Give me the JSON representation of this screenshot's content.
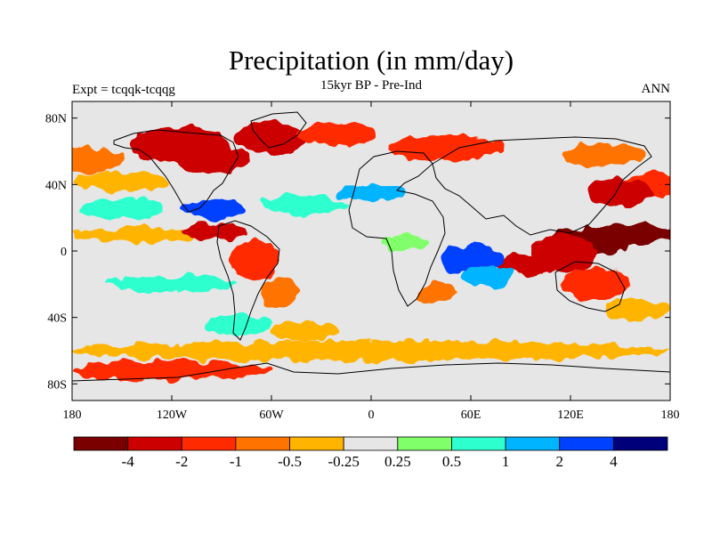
{
  "title": "Precipitation (in mm/day)",
  "subtitle": "15kyr BP - Pre-Ind",
  "left_label": "Expt = tcqqk-tcqqg",
  "right_label": "ANN",
  "colors": {
    "land_bg": "#e6e6e6",
    "coast": "#000000"
  },
  "chart_data": {
    "type": "heatmap",
    "title": "Precipitation (in mm/day)",
    "subtitle": "15kyr BP - Pre-Ind",
    "lon_range": [
      -180,
      180
    ],
    "lat_range": [
      -90,
      90
    ],
    "x_ticks": [
      {
        "value": -180,
        "label": "180"
      },
      {
        "value": -120,
        "label": "120W"
      },
      {
        "value": -60,
        "label": "60W"
      },
      {
        "value": 0,
        "label": "0"
      },
      {
        "value": 60,
        "label": "60E"
      },
      {
        "value": 120,
        "label": "120E"
      },
      {
        "value": 180,
        "label": "180"
      }
    ],
    "y_ticks": [
      {
        "value": 80,
        "label": "80N"
      },
      {
        "value": 40,
        "label": "40N"
      },
      {
        "value": 0,
        "label": "0"
      },
      {
        "value": -40,
        "label": "40S"
      },
      {
        "value": -80,
        "label": "80S"
      }
    ],
    "colorbar": {
      "colors": [
        "#7a0000",
        "#cc0000",
        "#ff2a00",
        "#ff7300",
        "#ffb400",
        "#e6e6e6",
        "#80ff6b",
        "#2effcf",
        "#00b4ff",
        "#0041ff",
        "#00007a"
      ],
      "labels": [
        "-4",
        "-2",
        "-1",
        "-0.5",
        "-0.25",
        "0.25",
        "0.5",
        "1",
        "2",
        "4"
      ]
    },
    "regions": [
      {
        "lon": -115,
        "lat": 64,
        "rlon": 30,
        "rlat": 11,
        "level": 1
      },
      {
        "lon": -95,
        "lat": 55,
        "rlon": 22,
        "rlat": 8,
        "level": 1
      },
      {
        "lon": -60,
        "lat": 68,
        "rlon": 22,
        "rlat": 10,
        "level": 1
      },
      {
        "lon": -20,
        "lat": 70,
        "rlon": 25,
        "rlat": 7,
        "level": 2
      },
      {
        "lon": 45,
        "lat": 62,
        "rlon": 35,
        "rlat": 8,
        "level": 2
      },
      {
        "lon": 140,
        "lat": 58,
        "rlon": 25,
        "rlat": 7,
        "level": 3
      },
      {
        "lon": -170,
        "lat": 55,
        "rlon": 20,
        "rlat": 8,
        "level": 3
      },
      {
        "lon": -150,
        "lat": 42,
        "rlon": 28,
        "rlat": 6,
        "level": 4
      },
      {
        "lon": 170,
        "lat": 40,
        "rlon": 20,
        "rlat": 7,
        "level": 2
      },
      {
        "lon": 150,
        "lat": 35,
        "rlon": 20,
        "rlat": 8,
        "level": 1
      },
      {
        "lon": 160,
        "lat": 10,
        "rlon": 25,
        "rlat": 6,
        "level": 0
      },
      {
        "lon": 130,
        "lat": 5,
        "rlon": 25,
        "rlat": 9,
        "level": 0
      },
      {
        "lon": 115,
        "lat": -2,
        "rlon": 20,
        "rlat": 12,
        "level": 1
      },
      {
        "lon": 95,
        "lat": -8,
        "rlon": 18,
        "rlat": 6,
        "level": 1
      },
      {
        "lon": 135,
        "lat": -20,
        "rlon": 20,
        "rlat": 10,
        "level": 2
      },
      {
        "lon": -140,
        "lat": 10,
        "rlon": 40,
        "rlat": 5,
        "level": 4
      },
      {
        "lon": -95,
        "lat": 12,
        "rlon": 20,
        "rlat": 5,
        "level": 1
      },
      {
        "lon": -70,
        "lat": -5,
        "rlon": 15,
        "rlat": 12,
        "level": 2
      },
      {
        "lon": -55,
        "lat": -25,
        "rlon": 10,
        "rlat": 10,
        "level": 3
      },
      {
        "lon": -95,
        "lat": 25,
        "rlon": 20,
        "rlat": 6,
        "level": 9
      },
      {
        "lon": -40,
        "lat": 28,
        "rlon": 25,
        "rlat": 6,
        "level": 7
      },
      {
        "lon": 0,
        "lat": 35,
        "rlon": 20,
        "rlat": 5,
        "level": 8
      },
      {
        "lon": -150,
        "lat": 25,
        "rlon": 25,
        "rlat": 6,
        "level": 7
      },
      {
        "lon": -120,
        "lat": -20,
        "rlon": 40,
        "rlat": 5,
        "level": 7
      },
      {
        "lon": 60,
        "lat": -5,
        "rlon": 20,
        "rlat": 8,
        "level": 9
      },
      {
        "lon": 70,
        "lat": -15,
        "rlon": 15,
        "rlat": 6,
        "level": 8
      },
      {
        "lon": 40,
        "lat": -25,
        "rlon": 12,
        "rlat": 6,
        "level": 3
      },
      {
        "lon": 20,
        "lat": 5,
        "rlon": 15,
        "rlat": 5,
        "level": 6
      },
      {
        "lon": 160,
        "lat": -35,
        "rlon": 20,
        "rlat": 6,
        "level": 4
      },
      {
        "lon": 0,
        "lat": -60,
        "rlon": 180,
        "rlat": 6,
        "level": 4
      },
      {
        "lon": -120,
        "lat": -72,
        "rlon": 60,
        "rlat": 6,
        "level": 2
      },
      {
        "lon": -40,
        "lat": -48,
        "rlon": 20,
        "rlat": 6,
        "level": 4
      },
      {
        "lon": -80,
        "lat": -45,
        "rlon": 20,
        "rlat": 6,
        "level": 7
      }
    ]
  }
}
